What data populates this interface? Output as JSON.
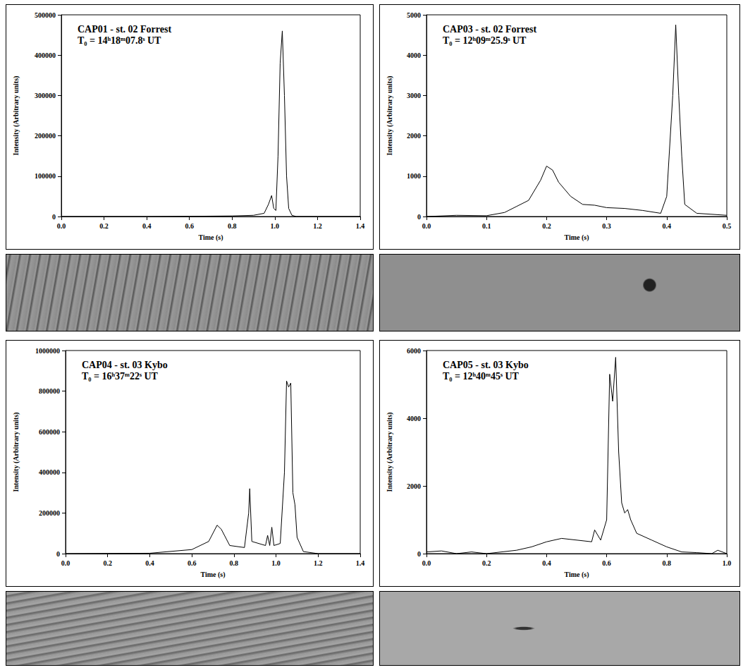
{
  "chart_data": [
    {
      "type": "line",
      "title": "CAP01 - st. 02 Forrest",
      "subtitle": "T₀ = 14ʰ18ᵐ07.8ˢ UT",
      "xlabel": "Time (s)",
      "ylabel": "Intensity (Arbitrary units)",
      "color": "#000000",
      "grid": false,
      "x": [
        0,
        0.2,
        0.4,
        0.6,
        0.8,
        0.9,
        0.95,
        0.97,
        0.985,
        0.995,
        1.005,
        1.015,
        1.025,
        1.035,
        1.045,
        1.055,
        1.065,
        1.08,
        1.1,
        1.2,
        1.4
      ],
      "values": [
        0,
        0,
        0,
        500,
        1500,
        3000,
        8000,
        30000,
        52000,
        20000,
        15000,
        150000,
        380000,
        460000,
        300000,
        100000,
        20000,
        3000,
        0,
        0,
        0
      ],
      "xlim": [
        0,
        1.4
      ],
      "xticks": [
        {
          "value": 0,
          "label": "0.0"
        },
        0.2,
        0.4,
        0.6,
        0.8,
        {
          "value": 1,
          "label": "1.0"
        },
        1.2,
        1.4
      ],
      "ylim": [
        0,
        500000
      ],
      "yticks": [
        0,
        100000,
        200000,
        300000,
        400000,
        500000
      ]
    },
    {
      "type": "line",
      "title": "CAP03 - st. 02 Forrest",
      "subtitle": "T₀ = 12ʰ09ᵐ25.9ˢ UT",
      "xlabel": "Time (s)",
      "ylabel": "Intensity (Arbitrary units)",
      "color": "#000000",
      "grid": false,
      "x": [
        0,
        0.05,
        0.1,
        0.13,
        0.15,
        0.17,
        0.19,
        0.2,
        0.21,
        0.22,
        0.24,
        0.26,
        0.28,
        0.3,
        0.33,
        0.36,
        0.39,
        0.4,
        0.41,
        0.415,
        0.42,
        0.425,
        0.43,
        0.45,
        0.5
      ],
      "values": [
        0,
        30,
        20,
        100,
        250,
        400,
        900,
        1250,
        1150,
        850,
        500,
        300,
        280,
        220,
        200,
        150,
        80,
        500,
        3000,
        4750,
        3000,
        1500,
        300,
        80,
        30
      ],
      "xlim": [
        0,
        0.5
      ],
      "xticks": [
        {
          "value": 0,
          "label": "0.0"
        },
        0.1,
        0.2,
        0.3,
        0.4,
        0.5
      ],
      "ylim": [
        0,
        5000
      ],
      "yticks": [
        0,
        1000,
        2000,
        3000,
        4000,
        5000
      ]
    },
    {
      "type": "line",
      "title": "CAP04 - st. 03 Kybo",
      "subtitle": "T₀ = 16ʰ37ᵐ22ˢ UT",
      "xlabel": "Time (s)",
      "ylabel": "Intensity (Arbitrary units)",
      "color": "#000000",
      "grid": false,
      "x": [
        0,
        0.4,
        0.6,
        0.68,
        0.72,
        0.74,
        0.78,
        0.85,
        0.87,
        0.875,
        0.885,
        0.95,
        0.96,
        0.97,
        0.98,
        0.99,
        1.02,
        1.04,
        1.05,
        1.06,
        1.07,
        1.08,
        1.09,
        1.1,
        1.13,
        1.2,
        1.4
      ],
      "values": [
        0,
        2000,
        20000,
        60000,
        140000,
        120000,
        40000,
        30000,
        200000,
        320000,
        60000,
        40000,
        90000,
        40000,
        130000,
        40000,
        50000,
        400000,
        850000,
        820000,
        840000,
        300000,
        240000,
        80000,
        10000,
        0,
        0
      ],
      "xlim": [
        0,
        1.4
      ],
      "xticks": [
        {
          "value": 0,
          "label": "0.0"
        },
        0.2,
        0.4,
        0.6,
        0.8,
        {
          "value": 1,
          "label": "1.0"
        },
        1.2,
        1.4
      ],
      "ylim": [
        0,
        1000000
      ],
      "yticks": [
        0,
        200000,
        400000,
        600000,
        800000,
        1000000
      ]
    },
    {
      "type": "line",
      "title": "CAP05 - st. 03 Kybo",
      "subtitle": "T₀ = 12ʰ40ᵐ45ˢ UT",
      "xlabel": "Time (s)",
      "ylabel": "Intensity (Arbitrary units)",
      "color": "#000000",
      "grid": false,
      "x": [
        0,
        0.05,
        0.1,
        0.15,
        0.2,
        0.3,
        0.35,
        0.4,
        0.45,
        0.5,
        0.55,
        0.56,
        0.58,
        0.6,
        0.61,
        0.62,
        0.63,
        0.64,
        0.65,
        0.66,
        0.67,
        0.68,
        0.7,
        0.75,
        0.8,
        0.85,
        0.9,
        0.95,
        0.97,
        1.0
      ],
      "values": [
        50,
        80,
        0,
        50,
        0,
        100,
        200,
        350,
        450,
        400,
        350,
        700,
        400,
        1000,
        5300,
        4500,
        5800,
        3000,
        1500,
        1200,
        1300,
        1000,
        600,
        400,
        200,
        50,
        30,
        0,
        100,
        0
      ],
      "xlim": [
        0,
        1.0
      ],
      "xticks": [
        {
          "value": 0,
          "label": "0.0"
        },
        0.2,
        0.4,
        0.6,
        0.8,
        {
          "value": 1,
          "label": "1.0"
        }
      ],
      "ylim": [
        0,
        6000
      ],
      "yticks": [
        0,
        2000,
        4000,
        6000
      ]
    }
  ]
}
